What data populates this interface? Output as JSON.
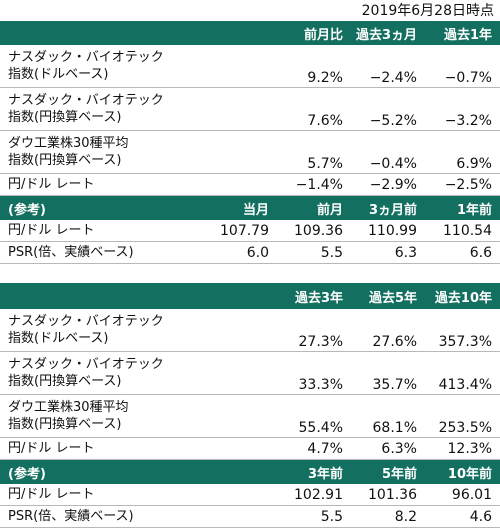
{
  "date_label": "2019年6月28日時点",
  "table1": {
    "headers": [
      "",
      "前月比",
      "過去3ヵ月",
      "過去1年"
    ],
    "rows": [
      {
        "label1": "ナスダック・バイオテック",
        "label2": "指数(ドルベース)",
        "values": [
          "9.2%",
          "−2.4%",
          "−0.7%"
        ]
      },
      {
        "label1": "ナスダック・バイオテック",
        "label2": "指数(円換算ベース)",
        "values": [
          "7.6%",
          "−5.2%",
          "−3.2%"
        ]
      },
      {
        "label1": "ダウ工業株30種平均",
        "label2": "指数(円換算ベース)",
        "values": [
          "5.7%",
          "−0.4%",
          "6.9%"
        ]
      },
      {
        "label1": "円/ドル レート",
        "values": [
          "−1.4%",
          "−2.9%",
          "−2.5%"
        ]
      }
    ],
    "ref_header": [
      "(参考)",
      "当月",
      "前月",
      "3ヵ月前",
      "1年前"
    ],
    "ref_rows": [
      {
        "label": "円/ドル レート",
        "values": [
          "107.79",
          "109.36",
          "110.99",
          "110.54"
        ]
      },
      {
        "label": "PSR(倍、実績ベース)",
        "values": [
          "6.0",
          "5.5",
          "6.3",
          "6.6"
        ]
      }
    ]
  },
  "table2": {
    "headers": [
      "",
      "過去3年",
      "過去5年",
      "過去10年"
    ],
    "rows": [
      {
        "label1": "ナスダック・バイオテック",
        "label2": "指数(ドルベース)",
        "values": [
          "27.3%",
          "27.6%",
          "357.3%"
        ]
      },
      {
        "label1": "ナスダック・バイオテック",
        "label2": "指数(円換算ベース)",
        "values": [
          "33.3%",
          "35.7%",
          "413.4%"
        ]
      },
      {
        "label1": "ダウ工業株30種平均",
        "label2": "指数(円換算ベース)",
        "values": [
          "55.4%",
          "68.1%",
          "253.5%"
        ]
      },
      {
        "label1": "円/ドル レート",
        "values": [
          "4.7%",
          "6.3%",
          "12.3%"
        ]
      }
    ],
    "ref_header": [
      "(参考)",
      "3年前",
      "5年前",
      "10年前"
    ],
    "ref_rows": [
      {
        "label": "円/ドル レート",
        "values": [
          "102.91",
          "101.36",
          "96.01"
        ]
      },
      {
        "label": "PSR(倍、実績ベース)",
        "values": [
          "5.5",
          "8.2",
          "4.6"
        ]
      }
    ]
  }
}
